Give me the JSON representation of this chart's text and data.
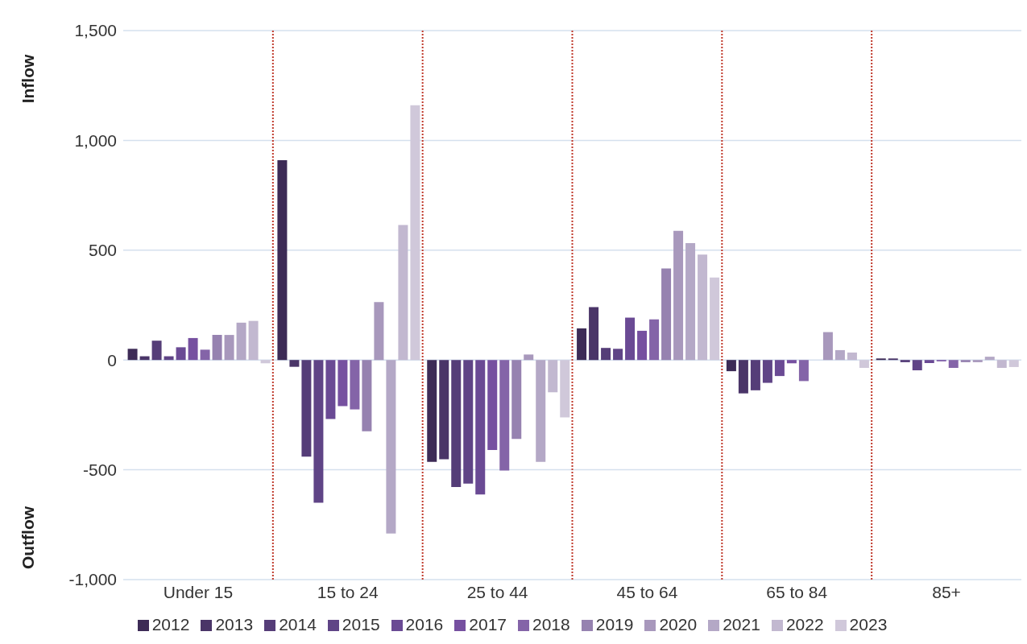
{
  "chart_data": {
    "type": "bar",
    "categories": [
      "Under 15",
      "15 to 24",
      "25 to 44",
      "45 to 64",
      "65 to 84",
      "85+"
    ],
    "series": [
      {
        "name": "2012",
        "color": "#3d2b56",
        "values": [
          51,
          910,
          -464,
          144,
          -51,
          7
        ]
      },
      {
        "name": "2013",
        "color": "#4a3568",
        "values": [
          17,
          -31,
          -452,
          241,
          -152,
          7
        ]
      },
      {
        "name": "2014",
        "color": "#553d78",
        "values": [
          88,
          -440,
          -578,
          55,
          -138,
          -10
        ]
      },
      {
        "name": "2015",
        "color": "#5f4486",
        "values": [
          17,
          -650,
          -563,
          51,
          -104,
          -47
        ]
      },
      {
        "name": "2016",
        "color": "#6a4a94",
        "values": [
          58,
          -269,
          -612,
          193,
          -73,
          -14
        ]
      },
      {
        "name": "2017",
        "color": "#7650a0",
        "values": [
          100,
          -210,
          -410,
          133,
          -15,
          -6
        ]
      },
      {
        "name": "2018",
        "color": "#8464a8",
        "values": [
          47,
          -225,
          -503,
          185,
          -96,
          -36
        ]
      },
      {
        "name": "2019",
        "color": "#9682b0",
        "values": [
          114,
          -325,
          -359,
          417,
          0,
          -10
        ]
      },
      {
        "name": "2020",
        "color": "#a898bc",
        "values": [
          114,
          264,
          25,
          588,
          127,
          -10
        ]
      },
      {
        "name": "2021",
        "color": "#b4a8c6",
        "values": [
          170,
          -790,
          -464,
          532,
          45,
          15
        ]
      },
      {
        "name": "2022",
        "color": "#c2b8d0",
        "values": [
          178,
          615,
          -147,
          480,
          34,
          -36
        ]
      },
      {
        "name": "2023",
        "color": "#d0c8da",
        "values": [
          -15,
          1160,
          -261,
          376,
          -36,
          -32
        ]
      }
    ],
    "ylim": [
      -1000,
      1500
    ],
    "yticks": [
      {
        "value": -1000,
        "label": "-1,000"
      },
      {
        "value": -500,
        "label": "-500"
      },
      0,
      500,
      {
        "value": 1000,
        "label": "1,000"
      },
      {
        "value": 1500,
        "label": "1,500"
      }
    ],
    "grid": "y",
    "legend": "bottom",
    "annotations": [
      "Inflow",
      "Outflow"
    ]
  }
}
